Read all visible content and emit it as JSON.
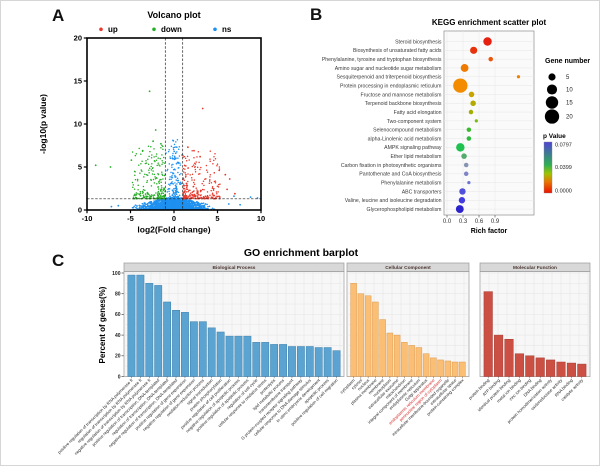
{
  "panels": {
    "a": "A",
    "b": "B",
    "c": "C"
  },
  "chart_data": [
    {
      "id": "volcano",
      "type": "scatter",
      "title": "Volcano plot",
      "xlabel": "log2(Fold change)",
      "ylabel": "-log10(p value)",
      "xlim": [
        -10,
        10
      ],
      "ylim": [
        0,
        20
      ],
      "xticks": [
        -10,
        -5,
        0,
        5,
        10
      ],
      "yticks": [
        0,
        5,
        10,
        15,
        20
      ],
      "legend": [
        {
          "label": "up",
          "color": "#e8392c"
        },
        {
          "label": "down",
          "color": "#27ae27"
        },
        {
          "label": "ns",
          "color": "#1e90f0"
        }
      ],
      "thresholds": {
        "fold_lines": [
          -1,
          1
        ],
        "pvalue_line": 1.3
      },
      "cloud": {
        "seed": 7,
        "ns_count": 2200,
        "spike_count": 320,
        "up_count": 270,
        "down_count": 250
      },
      "outliers": {
        "down": [
          [
            -9.0,
            5.2
          ],
          [
            -7.3,
            5.0
          ],
          [
            -2.8,
            13.8
          ],
          [
            -2.1,
            9.3
          ],
          [
            -2.4,
            8.0
          ],
          [
            -1.5,
            7.7
          ],
          [
            -3.6,
            6.9
          ],
          [
            -4.9,
            5.8
          ]
        ],
        "up": [
          [
            3.3,
            11.8
          ],
          [
            1.6,
            7.3
          ],
          [
            2.3,
            6.9
          ],
          [
            3.0,
            6.2
          ],
          [
            5.9,
            4.1
          ],
          [
            6.4,
            3.6
          ],
          [
            5.2,
            4.6
          ],
          [
            7.0,
            1.9
          ],
          [
            6.1,
            2.4
          ]
        ],
        "ns": [
          [
            6.9,
            1.6
          ],
          [
            8.8,
            1.5
          ],
          [
            9.6,
            1.4
          ],
          [
            6.3,
            0.7
          ],
          [
            7.6,
            0.6
          ],
          [
            -6.4,
            0.5
          ],
          [
            -7.2,
            0.4
          ]
        ]
      }
    },
    {
      "id": "kegg",
      "type": "scatter",
      "title": "KEGG enrichment scatter plot",
      "xlabel": "Rich factor",
      "xticks": [
        "0.0",
        "0.3",
        "0.6",
        "0.9"
      ],
      "legend_size": {
        "title": "Gene number",
        "values": [
          5,
          10,
          15,
          20
        ]
      },
      "legend_color": {
        "title": "p Value",
        "ticks": [
          "0.0797",
          "0.0399",
          "0.0000"
        ]
      },
      "pathways": [
        {
          "label": "Steroid biosynthesis",
          "rich": 0.76,
          "genes": 7,
          "p": 0.0002,
          "color": "#e61f10"
        },
        {
          "label": "Biosynthesis of unsaturated fatty acids",
          "rich": 0.5,
          "genes": 5,
          "p": 0.0008,
          "color": "#e7330c"
        },
        {
          "label": "Phenylalanine, tyrosine and tryptophan biosynthesis",
          "rich": 0.82,
          "genes": 2,
          "p": 0.0025,
          "color": "#ec560a"
        },
        {
          "label": "Amino sugar and nucleotide sugar metabolism",
          "rich": 0.33,
          "genes": 6,
          "p": 0.006,
          "color": "#ef7a00"
        },
        {
          "label": "Sesquiterpenoid and triterpenoid biosynthesis",
          "rich": 1.34,
          "genes": 1,
          "p": 0.007,
          "color": "#f08000"
        },
        {
          "label": "Protein processing in endoplasmic reticulum",
          "rich": 0.25,
          "genes": 20,
          "p": 0.009,
          "color": "#f38c00"
        },
        {
          "label": "Fructose and mannose metabolism",
          "rich": 0.46,
          "genes": 3,
          "p": 0.015,
          "color": "#c7a400"
        },
        {
          "label": "Terpenoid backbone biosynthesis",
          "rich": 0.49,
          "genes": 3,
          "p": 0.017,
          "color": "#b3aa00"
        },
        {
          "label": "Fatty acid elongation",
          "rich": 0.45,
          "genes": 2,
          "p": 0.019,
          "color": "#a2ae00"
        },
        {
          "label": "Two-component system",
          "rich": 0.55,
          "genes": 1,
          "p": 0.023,
          "color": "#7cba10"
        },
        {
          "label": "Selenocompound metabolism",
          "rich": 0.41,
          "genes": 2,
          "p": 0.031,
          "color": "#3aba2e"
        },
        {
          "label": "alpha-Linolenic acid metabolism",
          "rich": 0.41,
          "genes": 2,
          "p": 0.033,
          "color": "#2ebc3c"
        },
        {
          "label": "AMPK signaling pathway",
          "rich": 0.25,
          "genes": 7,
          "p": 0.038,
          "color": "#1fc24e"
        },
        {
          "label": "Ether lipid metabolism",
          "rich": 0.32,
          "genes": 3,
          "p": 0.044,
          "color": "#55aa6e"
        },
        {
          "label": "Carbon fixation in photosynthetic organisms",
          "rich": 0.36,
          "genes": 2,
          "p": 0.054,
          "color": "#8494b2"
        },
        {
          "label": "Pantothenate and CoA biosynthesis",
          "rich": 0.36,
          "genes": 2,
          "p": 0.058,
          "color": "#7e85c4"
        },
        {
          "label": "Phenylalanine metabolism",
          "rich": 0.41,
          "genes": 1,
          "p": 0.062,
          "color": "#6f72d0"
        },
        {
          "label": "ABC transporters",
          "rich": 0.29,
          "genes": 4,
          "p": 0.068,
          "color": "#5150da"
        },
        {
          "label": "Valine, leucine and isoleucine degradation",
          "rich": 0.28,
          "genes": 4,
          "p": 0.072,
          "color": "#423be0"
        },
        {
          "label": "Glycerophospholipid metabolism",
          "rich": 0.24,
          "genes": 6,
          "p": 0.079,
          "color": "#2c22cc"
        }
      ]
    },
    {
      "id": "go",
      "type": "bar",
      "title": "GO enrichment barplot",
      "ylabel": "Percent of genes(%)",
      "ylim": [
        0,
        100
      ],
      "yticks": [
        0,
        20,
        40,
        60,
        80,
        100
      ],
      "facets": [
        {
          "label": "Biological Process",
          "bar_color": "#5ba3d0",
          "bar_edge": "#3c7fad",
          "red_labels": [],
          "categories": [
            "positive regulation of transcription by RNA polymerase II",
            "regulation of transcription by RNA polymerase II",
            "negative regulation of transcription by RNA polymerase II",
            "positive regulation of transcription, DNA-templated",
            "regulation of transcription, DNA-templated",
            "negative regulation of transcription, DNA-templated",
            "positive regulation of gene expression",
            "negative regulation of gene expression",
            "oxidation-reduction process",
            "signal transduction",
            "protein phosphorylation",
            "positive regulation of cell proliferation",
            "negative regulation of apoptotic process",
            "positive regulation of apoptotic process",
            "regulation of cell cycle",
            "cellular response to oxidative stress",
            "proteolysis",
            "lipid metabolic process",
            "transmembrane transport",
            "G protein-coupled receptor signaling pathway",
            "cellular response to DNA damage stimulus",
            "in utero embryonic development",
            "apoptotic process",
            "positive regulation of cell migration"
          ],
          "values": [
            98,
            98,
            90,
            88,
            72,
            64,
            62,
            53,
            53,
            47,
            43,
            39,
            39,
            39,
            33,
            33,
            31,
            31,
            29,
            29,
            29,
            28,
            28,
            25
          ]
        },
        {
          "label": "Cellular Component",
          "bar_color": "#fbbe75",
          "bar_edge": "#dd9a4a",
          "red_labels": [
            11,
            12
          ],
          "categories": [
            "cytoplasm",
            "cytosol",
            "nucleus",
            "plasma membrane",
            "membrane",
            "nucleoplasm",
            "extracellular exosome",
            "mitochondrion",
            "integral component of membrane",
            "endoplasmic reticulum",
            "Golgi apparatus",
            "endoplasmic reticulum membrane",
            "perinuclear region of cytoplasm",
            "intracellular membrane-bounded organelle",
            "extracellular space",
            "protein-containing complex"
          ],
          "values": [
            90,
            80,
            78,
            72,
            55,
            42,
            40,
            33,
            30,
            28,
            22,
            18,
            16,
            15,
            14,
            14
          ]
        },
        {
          "label": "Molecular Function",
          "bar_color": "#cc4f44",
          "bar_edge": "#a53a30",
          "red_labels": [],
          "categories": [
            "protein binding",
            "ATP binding",
            "identical protein binding",
            "metal ion binding",
            "zinc ion binding",
            "DNA binding",
            "protein homodimerization activity",
            "oxidoreductase activity",
            "RNA binding",
            "catalytic activity"
          ],
          "values": [
            82,
            40,
            36,
            22,
            20,
            18,
            16,
            14,
            13,
            12
          ]
        }
      ]
    }
  ]
}
